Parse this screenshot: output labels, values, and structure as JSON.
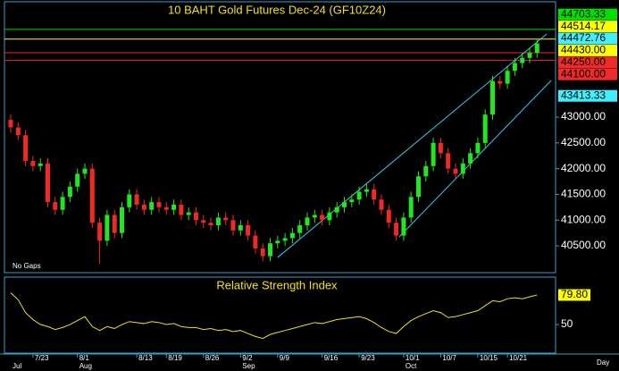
{
  "chart_data": [
    {
      "type": "candlestick",
      "title": "10  BAHT  Gold Futures Dec-24  (GF10Z24)",
      "note": "No Gaps",
      "axis_unit_label": "Day",
      "categories": [
        null,
        null,
        null,
        "7/23",
        null,
        null,
        null,
        null,
        null,
        "8/1",
        null,
        null,
        null,
        null,
        null,
        null,
        null,
        "8/13",
        null,
        null,
        null,
        "8/19",
        null,
        null,
        null,
        null,
        "8/26",
        null,
        null,
        null,
        null,
        "9/2",
        null,
        null,
        null,
        null,
        "9/9",
        null,
        null,
        null,
        null,
        null,
        "9/16",
        null,
        null,
        null,
        null,
        "9/23",
        null,
        null,
        null,
        null,
        null,
        "10/1",
        null,
        null,
        null,
        null,
        "10/7",
        null,
        null,
        null,
        null,
        "10/15",
        null,
        null,
        null,
        "10/21",
        null,
        null,
        null,
        null
      ],
      "months": [
        "Jul",
        null,
        null,
        null,
        null,
        null,
        null,
        null,
        null,
        "Aug",
        null,
        null,
        null,
        null,
        null,
        null,
        null,
        null,
        null,
        null,
        null,
        null,
        null,
        null,
        null,
        null,
        null,
        null,
        null,
        null,
        null,
        "Sep",
        null,
        null,
        null,
        null,
        null,
        null,
        null,
        null,
        null,
        null,
        null,
        null,
        null,
        null,
        null,
        null,
        null,
        null,
        null,
        null,
        null,
        "Oct",
        null,
        null,
        null,
        null,
        null,
        null,
        null,
        null,
        null,
        null,
        null,
        null,
        null,
        null,
        null,
        null,
        null,
        null
      ],
      "open": [
        42950,
        42800,
        42650,
        42150,
        42050,
        42100,
        41350,
        41200,
        41450,
        41650,
        41900,
        42000,
        40950,
        40600,
        41100,
        40750,
        41250,
        41500,
        41300,
        41200,
        41350,
        41250,
        41200,
        41300,
        41100,
        41150,
        41000,
        40950,
        40900,
        41050,
        41000,
        40800,
        40900,
        40700,
        40450,
        40300,
        40550,
        40600,
        40650,
        40750,
        40900,
        41050,
        41100,
        41000,
        41150,
        41250,
        41350,
        41400,
        41550,
        41600,
        41400,
        41200,
        40950,
        40700,
        41050,
        41450,
        41850,
        42050,
        42500,
        42300,
        42000,
        41900,
        42100,
        42300,
        42500,
        43050,
        43700,
        43650,
        43900,
        44050,
        44150,
        44250
      ],
      "high": [
        43050,
        42900,
        42750,
        42250,
        42200,
        42200,
        41450,
        41550,
        41750,
        42000,
        42100,
        42100,
        41050,
        41200,
        41200,
        41350,
        41600,
        41600,
        41400,
        41450,
        41450,
        41350,
        41400,
        41400,
        41250,
        41250,
        41100,
        41050,
        41150,
        41150,
        41100,
        41000,
        41000,
        40800,
        40550,
        40650,
        40700,
        40750,
        40850,
        41000,
        41150,
        41200,
        41200,
        41250,
        41350,
        41450,
        41500,
        41650,
        41700,
        41700,
        41500,
        41300,
        41050,
        41150,
        41550,
        41950,
        42150,
        42600,
        42600,
        42400,
        42100,
        42200,
        42400,
        42600,
        43150,
        43800,
        43800,
        44000,
        44150,
        44250,
        44350,
        44520
      ],
      "low": [
        42700,
        42550,
        42050,
        41950,
        41950,
        41250,
        41100,
        41100,
        41350,
        41550,
        41800,
        40850,
        40150,
        40500,
        40650,
        40650,
        41150,
        41200,
        41100,
        41100,
        41150,
        41100,
        41100,
        41000,
        41000,
        40900,
        40850,
        40800,
        40800,
        40900,
        40700,
        40700,
        40600,
        40350,
        40200,
        40200,
        40450,
        40500,
        40550,
        40650,
        40800,
        40950,
        40900,
        40900,
        41050,
        41150,
        41250,
        41300,
        41450,
        41300,
        41100,
        40850,
        40600,
        40600,
        40950,
        41350,
        41750,
        41950,
        42200,
        41900,
        41800,
        41800,
        42000,
        42200,
        42400,
        42950,
        43550,
        43550,
        43800,
        43950,
        44050,
        44150
      ],
      "close": [
        42800,
        42650,
        42150,
        42050,
        42100,
        41350,
        41200,
        41450,
        41650,
        41900,
        42000,
        40950,
        40600,
        41100,
        40750,
        41250,
        41500,
        41300,
        41200,
        41350,
        41250,
        41200,
        41300,
        41100,
        41150,
        41000,
        40950,
        40900,
        41050,
        41000,
        40800,
        40900,
        40700,
        40450,
        40300,
        40550,
        40600,
        40650,
        40750,
        40900,
        41050,
        41100,
        41000,
        41150,
        41250,
        41350,
        41400,
        41550,
        41600,
        41400,
        41200,
        40950,
        40700,
        41050,
        41450,
        41850,
        42050,
        42500,
        42300,
        42000,
        41900,
        42100,
        42300,
        42500,
        43050,
        43700,
        43650,
        43900,
        44050,
        44150,
        44250,
        44430
      ],
      "up_color": "#22e622",
      "down_color": "#f02828",
      "ylim": [
        39980,
        45240
      ],
      "yticks": [
        {
          "value": 40500,
          "label": "40500.00"
        },
        {
          "value": 41000,
          "label": "41000.00"
        },
        {
          "value": 41500,
          "label": "41500.00"
        },
        {
          "value": 42000,
          "label": "42000.00"
        },
        {
          "value": 42500,
          "label": "42500.00"
        },
        {
          "value": 43000,
          "label": "43000.00"
        }
      ],
      "grid": false,
      "levels": [
        {
          "value": 44703.33,
          "color": "#00e000",
          "line": true
        },
        {
          "value": 44514.17,
          "color": "#ffff00",
          "line": true
        },
        {
          "value": 44472.76,
          "color": "#40f0ff",
          "line": false
        },
        {
          "value": 44430,
          "label": "44430.00",
          "color": "#ffff00",
          "line": false
        },
        {
          "value": 44250,
          "label": "44250.00",
          "color": "#ee2a2a",
          "line": true
        },
        {
          "value": 44100,
          "label": "44100.00",
          "color": "#ee2a2a",
          "line": true
        },
        {
          "value": 43413.33,
          "color": "#40f0ff",
          "line": false
        }
      ],
      "trendlines": [
        {
          "x": [
            36,
            72.3
          ],
          "y": [
            40274,
            44615
          ],
          "color": "#33ccee"
        },
        {
          "x": [
            52.4,
            72.9
          ],
          "y": [
            40674,
            43712
          ],
          "color": "#33ccee"
        }
      ]
    },
    {
      "type": "line",
      "title": "Relative Strength Index",
      "color": "#f0e020",
      "values": [
        82,
        75,
        62,
        55,
        50,
        48,
        45,
        47,
        50,
        54,
        58,
        48,
        44,
        48,
        46,
        50,
        53,
        52,
        51,
        53,
        52,
        50,
        51,
        48,
        47,
        47,
        45,
        46,
        44,
        45,
        43,
        44,
        41,
        38,
        36,
        40,
        42,
        44,
        46,
        48,
        50,
        52,
        51,
        53,
        55,
        56,
        57,
        58,
        56,
        52,
        47,
        43,
        41,
        48,
        54,
        58,
        61,
        64,
        62,
        57,
        58,
        60,
        62,
        64,
        69,
        74,
        73,
        76,
        77,
        76,
        78,
        79.8
      ],
      "ylim": [
        23,
        96
      ],
      "yticks": [
        50
      ],
      "tag": {
        "value": 79.8,
        "label": "79.80",
        "color": "#ffff00"
      }
    }
  ]
}
